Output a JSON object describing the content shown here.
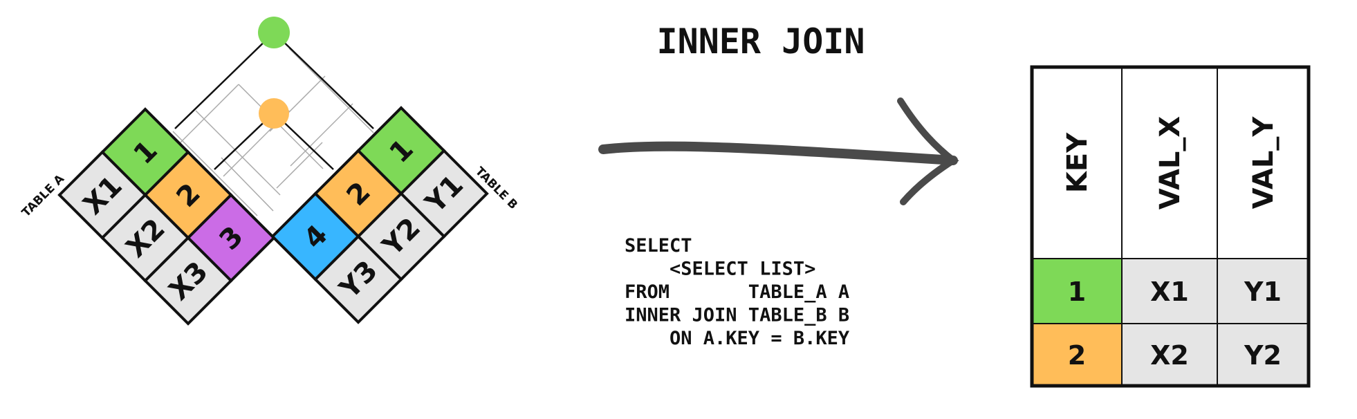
{
  "title": "INNER JOIN",
  "colors": {
    "green": "#7ed957",
    "orange": "#ffbd59",
    "purple": "#cb6ce6",
    "blue": "#38b6ff",
    "gray": "#e5e5e5",
    "line": "#111111",
    "arrow": "#4a4a4a"
  },
  "table_a": {
    "label": "TABLE A",
    "keys": [
      {
        "key": "1",
        "color": "green"
      },
      {
        "key": "2",
        "color": "orange"
      },
      {
        "key": "3",
        "color": "purple"
      }
    ],
    "values": [
      "X1",
      "X2",
      "X3"
    ]
  },
  "table_b": {
    "label": "TABLE B",
    "keys": [
      {
        "key": "1",
        "color": "green"
      },
      {
        "key": "2",
        "color": "orange"
      },
      {
        "key": "4",
        "color": "blue"
      }
    ],
    "values": [
      "Y1",
      "Y2",
      "Y3"
    ]
  },
  "sql": [
    "SELECT",
    "    <SELECT LIST>",
    "FROM       TABLE_A A",
    "INNER JOIN TABLE_B B",
    "    ON A.KEY = B.KEY"
  ],
  "result": {
    "headers": [
      "KEY",
      "VAL_X",
      "VAL_Y"
    ],
    "rows": [
      {
        "key": "1",
        "val_x": "X1",
        "val_y": "Y1",
        "color": "green"
      },
      {
        "key": "2",
        "val_x": "X2",
        "val_y": "Y2",
        "color": "orange"
      }
    ]
  }
}
